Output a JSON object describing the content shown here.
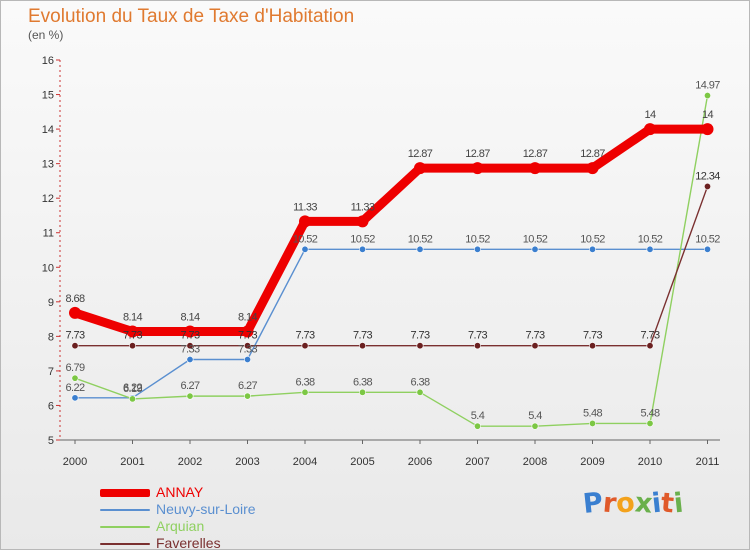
{
  "title": "Evolution du Taux de Taxe d'Habitation",
  "unit": "(en %)",
  "logo": {
    "letters": [
      "P",
      "r",
      "o",
      "x",
      "i",
      "t",
      "i"
    ],
    "colors": [
      "#3a7fd0",
      "#e05a2a",
      "#f3a21c",
      "#6ab04c",
      "#3a7fd0",
      "#e05a2a",
      "#6ab04c"
    ]
  },
  "chart_data": {
    "type": "line",
    "title": "Evolution du Taux de Taxe d'Habitation",
    "ylabel": "(en %)",
    "xlabel": "",
    "ylim": [
      5,
      16
    ],
    "y_ticks": [
      "5",
      "6",
      "7",
      "8",
      "9",
      "10",
      "11",
      "12",
      "13",
      "14",
      "15",
      "16"
    ],
    "x": [
      "2000",
      "2001",
      "2002",
      "2003",
      "2004",
      "2005",
      "2006",
      "2007",
      "2008",
      "2009",
      "2010",
      "2011"
    ],
    "grid": false,
    "legend_position": "bottom-left",
    "series": [
      {
        "name": "Neuvy-sur-Loire",
        "color": "#5a8fd0",
        "dot": "#3b7fcf",
        "label_color": "#555555",
        "values": [
          6.22,
          6.22,
          7.33,
          7.33,
          10.52,
          10.52,
          10.52,
          10.52,
          10.52,
          10.52,
          10.52,
          10.52
        ],
        "labels": [
          "6.22",
          "6.22",
          "7.33",
          "7.33",
          "10.52",
          "10.52",
          "10.52",
          "10.52",
          "10.52",
          "10.52",
          "10.52",
          "10.52"
        ]
      },
      {
        "name": "Arquian",
        "color": "#8fd060",
        "dot": "#7cc744",
        "label_color": "#555555",
        "values": [
          6.79,
          6.19,
          6.27,
          6.27,
          6.38,
          6.38,
          6.38,
          5.4,
          5.4,
          5.48,
          5.48,
          14.97
        ],
        "labels": [
          "6.79",
          "6.19",
          "6.27",
          "6.27",
          "6.38",
          "6.38",
          "6.38",
          "5.4",
          "5.4",
          "5.48",
          "5.48",
          "14.97"
        ]
      },
      {
        "name": "Faverelles",
        "color": "#7a3030",
        "dot": "#6b2020",
        "label_color": "#333333",
        "values": [
          7.73,
          7.73,
          7.73,
          7.73,
          7.73,
          7.73,
          7.73,
          7.73,
          7.73,
          7.73,
          7.73,
          12.34
        ],
        "labels": [
          "7.73",
          "7.73",
          "7.73",
          "7.73",
          "7.73",
          "7.73",
          "7.73",
          "7.73",
          "7.73",
          "7.73",
          "7.73",
          "12.34"
        ]
      },
      {
        "name": "ANNAY",
        "color": "#ee0000",
        "dot": "#ee0000",
        "label_color": "#444444",
        "values": [
          8.68,
          8.14,
          8.14,
          8.14,
          11.33,
          11.33,
          12.87,
          12.87,
          12.87,
          12.87,
          14,
          14
        ],
        "labels": [
          "8.68",
          "8.14",
          "8.14",
          "8.14",
          "11.33",
          "11.33",
          "12.87",
          "12.87",
          "12.87",
          "12.87",
          "14",
          "14"
        ]
      }
    ],
    "legend_order": [
      "ANNAY",
      "Neuvy-sur-Loire",
      "Arquian",
      "Faverelles"
    ]
  }
}
